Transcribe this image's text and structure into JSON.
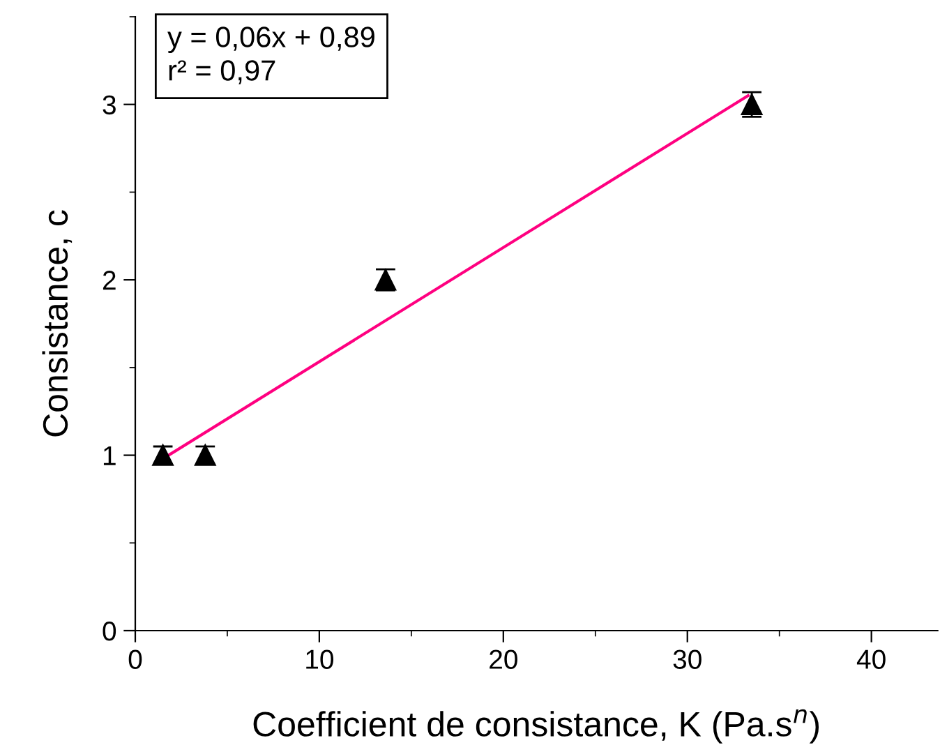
{
  "chart_data": {
    "type": "scatter",
    "xlabel": "Coefficient de consistance, K (Pa.s$^{n}$)",
    "ylabel": "Consistance, c",
    "annotations": [
      "y = 0,06x + 0,89",
      "r² = 0,97"
    ],
    "xlim": [
      0,
      43.6
    ],
    "xticks": [
      0,
      10,
      20,
      30,
      40
    ],
    "ylim": [
      0,
      3.5
    ],
    "yticks": [
      0,
      1,
      2,
      3
    ],
    "grid": false,
    "marker": "triangle",
    "series": [
      {
        "color": "#000000",
        "x": [
          1.5,
          3.8,
          13.6,
          33.5
        ],
        "values": [
          1,
          1,
          2,
          3
        ],
        "errors": [
          0.05,
          0.05,
          0.06,
          0.07
        ]
      },
      {
        "type": "line",
        "color": "#ff0080",
        "x": [
          1.5,
          33.3
        ],
        "values": [
          0.98,
          3.05
        ],
        "marker": "none"
      }
    ]
  }
}
